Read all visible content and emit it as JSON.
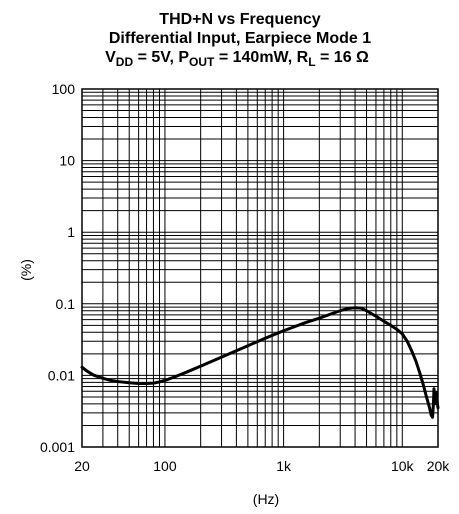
{
  "chart_data": {
    "type": "line",
    "title": {
      "line1": "THD+N vs Frequency",
      "line2": "Differential Input, Earpiece Mode 1",
      "line3": {
        "vdd_prefix": "V",
        "vdd_sub": "DD",
        "vdd_value": " = 5V, ",
        "pout_prefix": "P",
        "pout_sub": "OUT",
        "pout_value": " = 140mW, ",
        "rl_prefix": "R",
        "rl_sub": "L",
        "rl_value": " = 16 Ω"
      }
    },
    "xlabel": "(Hz)",
    "ylabel": "(%)",
    "x_scale": "log",
    "y_scale": "log",
    "xlim": [
      20,
      20000
    ],
    "ylim": [
      0.001,
      100
    ],
    "grid": true,
    "x_ticks": [
      {
        "value": 20,
        "label": "20"
      },
      {
        "value": 100,
        "label": "100"
      },
      {
        "value": 1000,
        "label": "1k"
      },
      {
        "value": 10000,
        "label": "10k"
      },
      {
        "value": 20000,
        "label": "20k"
      }
    ],
    "y_ticks": [
      {
        "value": 100,
        "label": "100"
      },
      {
        "value": 10,
        "label": "10"
      },
      {
        "value": 1,
        "label": "1"
      },
      {
        "value": 0.1,
        "label": "0.1"
      },
      {
        "value": 0.01,
        "label": "0.01"
      },
      {
        "value": 0.001,
        "label": "0.001"
      }
    ],
    "series": [
      {
        "color": "#000000",
        "points": [
          [
            20,
            0.013
          ],
          [
            22,
            0.0115
          ],
          [
            25,
            0.0101
          ],
          [
            30,
            0.0091
          ],
          [
            35,
            0.0085
          ],
          [
            40,
            0.0082
          ],
          [
            50,
            0.0079
          ],
          [
            60,
            0.0077
          ],
          [
            70,
            0.0077
          ],
          [
            80,
            0.0078
          ],
          [
            90,
            0.0081
          ],
          [
            100,
            0.0085
          ],
          [
            120,
            0.0095
          ],
          [
            150,
            0.011
          ],
          [
            200,
            0.0135
          ],
          [
            300,
            0.018
          ],
          [
            500,
            0.026
          ],
          [
            700,
            0.033
          ],
          [
            1000,
            0.042
          ],
          [
            1500,
            0.054
          ],
          [
            2000,
            0.063
          ],
          [
            2500,
            0.072
          ],
          [
            3000,
            0.08
          ],
          [
            3500,
            0.086
          ],
          [
            4000,
            0.088
          ],
          [
            4500,
            0.087
          ],
          [
            5000,
            0.08
          ],
          [
            6000,
            0.067
          ],
          [
            7000,
            0.057
          ],
          [
            8000,
            0.05
          ],
          [
            9000,
            0.044
          ],
          [
            10000,
            0.038
          ],
          [
            11000,
            0.03
          ],
          [
            12000,
            0.022
          ],
          [
            13000,
            0.016
          ],
          [
            14000,
            0.011
          ],
          [
            15000,
            0.0075
          ],
          [
            16000,
            0.005
          ],
          [
            17000,
            0.0035
          ],
          [
            17500,
            0.0028
          ],
          [
            18000,
            0.0026
          ],
          [
            18300,
            0.004
          ],
          [
            18500,
            0.0065
          ],
          [
            18800,
            0.004
          ],
          [
            19200,
            0.0058
          ],
          [
            19600,
            0.0045
          ],
          [
            20000,
            0.0035
          ]
        ]
      }
    ]
  }
}
